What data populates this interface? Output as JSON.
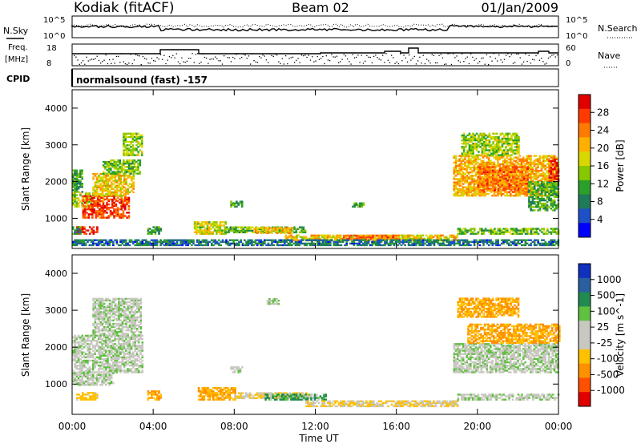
{
  "header": {
    "station": "Kodiak (fitACF)",
    "beam": "Beam 02",
    "date": "01/Jan/2009"
  },
  "status_panels": {
    "nsky_label": "N.Sky",
    "nsearch_label": "N.Search",
    "nsky_ticks": [
      "10^5",
      "10^0"
    ],
    "nsearch_ticks": [
      "10^5",
      "10^0"
    ],
    "freq_label_1": "Freq.",
    "freq_label_2": "[MHz]",
    "freq_ticks": [
      "18",
      "8"
    ],
    "nave_label": "Nave",
    "nave_ticks": [
      "60",
      "0"
    ],
    "cpid_label": "CPID",
    "cpid_text": "normalsound (fast) -157"
  },
  "colorbars": {
    "power": {
      "label": "Power [dB]",
      "ticks": [
        "28",
        "24",
        "20",
        "16",
        "12",
        "8",
        "4"
      ],
      "colors": [
        "#e00000",
        "#ff3a00",
        "#ff7a00",
        "#ffb000",
        "#d8d800",
        "#88c800",
        "#2aa02a",
        "#1f7a5a",
        "#1e50c8",
        "#0000ff"
      ]
    },
    "velocity": {
      "label": "Velocity [m s^-1]",
      "ticks": [
        "1000",
        "500",
        "100",
        "25",
        "-25",
        "-100",
        "-500",
        "-1000"
      ],
      "colors": [
        "#1030c0",
        "#2a60a0",
        "#208a50",
        "#60c040",
        "#c8c8c0",
        "#c8c8c0",
        "#ffc000",
        "#ff9000",
        "#ff5000",
        "#e00000"
      ]
    }
  },
  "chart_data": [
    {
      "type": "heatmap",
      "panel": "power",
      "ylabel": "Slant Range [km]",
      "y_ticks": [
        "4000",
        "3000",
        "2000",
        "1000"
      ],
      "ylim": [
        180,
        4500
      ],
      "xlim": [
        0,
        24
      ],
      "value_label": "Power [dB]",
      "value_range": [
        0,
        30
      ],
      "regions": [
        {
          "t0": 0.0,
          "t1": 0.5,
          "r0": 1700,
          "r1": 2300,
          "v": 10
        },
        {
          "t0": 0.0,
          "t1": 1.0,
          "r0": 1300,
          "r1": 1700,
          "v": 14
        },
        {
          "t0": 0.5,
          "t1": 2.8,
          "r0": 1000,
          "r1": 1600,
          "v": 26
        },
        {
          "t0": 1.0,
          "t1": 3.0,
          "r0": 1600,
          "r1": 2200,
          "v": 18
        },
        {
          "t0": 1.5,
          "t1": 3.3,
          "r0": 2200,
          "r1": 2600,
          "v": 12
        },
        {
          "t0": 2.5,
          "t1": 3.4,
          "r0": 2700,
          "r1": 3300,
          "v": 14
        },
        {
          "t0": 0.2,
          "t1": 1.2,
          "r0": 560,
          "r1": 760,
          "v": 28
        },
        {
          "t0": 0.0,
          "t1": 0.4,
          "r0": 560,
          "r1": 760,
          "v": 8
        },
        {
          "t0": 3.7,
          "t1": 4.4,
          "r0": 560,
          "r1": 760,
          "v": 10
        },
        {
          "t0": 6.0,
          "t1": 7.6,
          "r0": 560,
          "r1": 900,
          "v": 16
        },
        {
          "t0": 7.5,
          "t1": 11.5,
          "r0": 600,
          "r1": 780,
          "v": 12
        },
        {
          "t0": 9.0,
          "t1": 10.8,
          "r0": 580,
          "r1": 720,
          "v": 20
        },
        {
          "t0": 10.5,
          "t1": 19.0,
          "r0": 380,
          "r1": 560,
          "v": 18
        },
        {
          "t0": 13.0,
          "t1": 16.0,
          "r0": 420,
          "r1": 520,
          "v": 24
        },
        {
          "t0": 7.8,
          "t1": 8.4,
          "r0": 1300,
          "r1": 1450,
          "v": 10
        },
        {
          "t0": 13.8,
          "t1": 14.5,
          "r0": 1300,
          "r1": 1420,
          "v": 10
        },
        {
          "t0": 0.0,
          "t1": 24.0,
          "r0": 250,
          "r1": 420,
          "v": 6
        },
        {
          "t0": 18.8,
          "t1": 24.0,
          "r0": 1600,
          "r1": 2700,
          "v": 20
        },
        {
          "t0": 20.0,
          "t1": 22.5,
          "r0": 1700,
          "r1": 2400,
          "v": 24
        },
        {
          "t0": 19.2,
          "t1": 22.0,
          "r0": 2700,
          "r1": 3300,
          "v": 14
        },
        {
          "t0": 22.5,
          "t1": 24.0,
          "r0": 1200,
          "r1": 2000,
          "v": 10
        },
        {
          "t0": 23.5,
          "t1": 24.0,
          "r0": 2000,
          "r1": 2600,
          "v": 28
        },
        {
          "t0": 19.0,
          "t1": 24.0,
          "r0": 560,
          "r1": 720,
          "v": 12
        }
      ]
    },
    {
      "type": "heatmap",
      "panel": "velocity",
      "ylabel": "Slant Range [km]",
      "y_ticks": [
        "4000",
        "3000",
        "2000",
        "1000"
      ],
      "ylim": [
        180,
        4500
      ],
      "xlim": [
        0,
        24
      ],
      "xlabel": "Time UT",
      "x_ticks": [
        "00:00",
        "04:00",
        "08:00",
        "12:00",
        "16:00",
        "20:00",
        "00:00"
      ],
      "value_label": "Velocity [m s^-1]",
      "regions": [
        {
          "t0": 0.0,
          "t1": 3.5,
          "r0": 1300,
          "r1": 2300,
          "v": 0
        },
        {
          "t0": 1.0,
          "t1": 3.4,
          "r0": 2300,
          "r1": 3300,
          "v": 0
        },
        {
          "t0": 0.0,
          "t1": 2.0,
          "r0": 960,
          "r1": 1300,
          "v": 0
        },
        {
          "t0": 0.2,
          "t1": 1.2,
          "r0": 560,
          "r1": 760,
          "v": -100
        },
        {
          "t0": 3.7,
          "t1": 4.4,
          "r0": 560,
          "r1": 800,
          "v": -300
        },
        {
          "t0": 6.2,
          "t1": 8.0,
          "r0": 560,
          "r1": 880,
          "v": -300
        },
        {
          "t0": 8.0,
          "t1": 11.8,
          "r0": 600,
          "r1": 780,
          "v": -60
        },
        {
          "t0": 9.5,
          "t1": 12.5,
          "r0": 560,
          "r1": 720,
          "v": 60
        },
        {
          "t0": 11.5,
          "t1": 19.0,
          "r0": 380,
          "r1": 560,
          "v": -60
        },
        {
          "t0": 7.8,
          "t1": 8.4,
          "r0": 1300,
          "r1": 1450,
          "v": 0
        },
        {
          "t0": 9.6,
          "t1": 10.2,
          "r0": 3150,
          "r1": 3300,
          "v": 0
        },
        {
          "t0": 18.8,
          "t1": 24.0,
          "r0": 1300,
          "r1": 2100,
          "v": 0
        },
        {
          "t0": 19.5,
          "t1": 24.0,
          "r0": 2100,
          "r1": 2600,
          "v": -300
        },
        {
          "t0": 19.0,
          "t1": 22.0,
          "r0": 2800,
          "r1": 3300,
          "v": -300
        },
        {
          "t0": 19.0,
          "t1": 24.0,
          "r0": 560,
          "r1": 720,
          "v": 0
        }
      ]
    }
  ]
}
